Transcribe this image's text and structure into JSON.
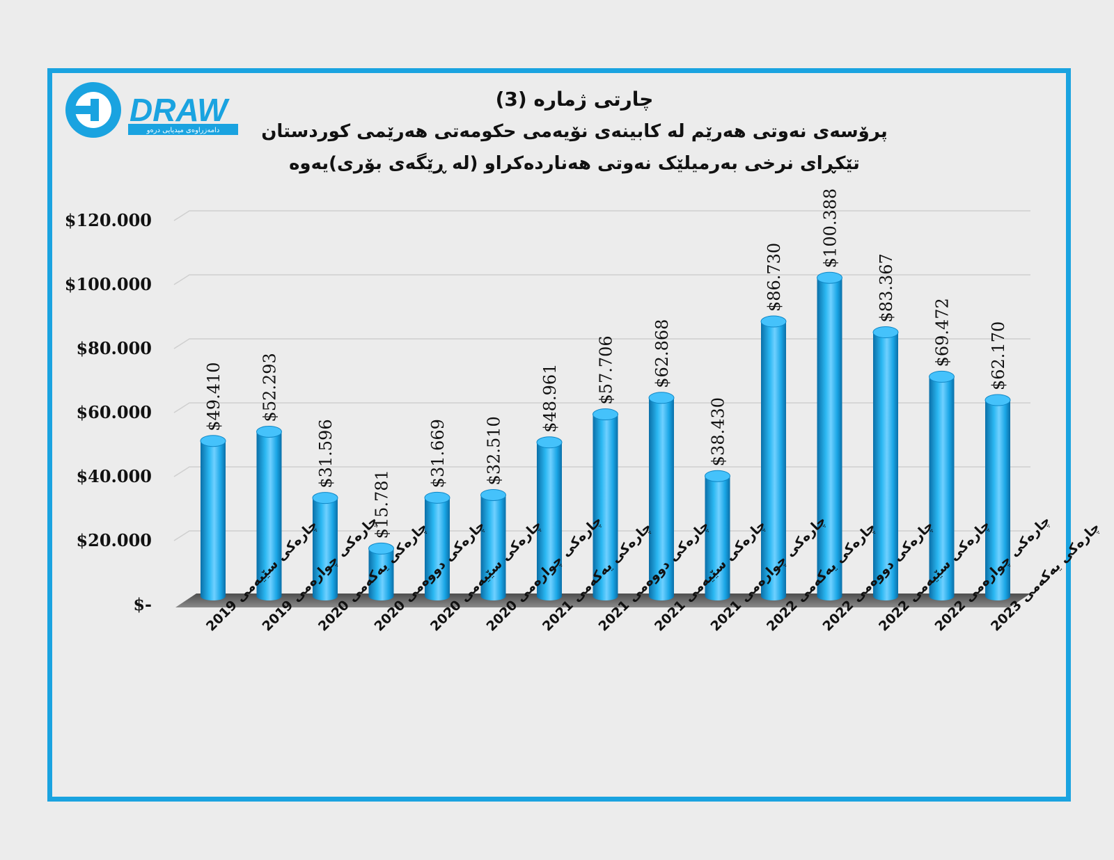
{
  "header": {
    "logo_text": "DRAW",
    "logo_tagline": "دامەزراوەی میدیایی درەو",
    "title_line1": "چارتی ژمارە (3)",
    "title_line2": "پرۆسەی نەوتی هەرێم لە کابینەی نۆیەمی حکومەتی هەرێمی کوردستان",
    "title_line3": "تێکڕای نرخی بەرمیلێک نەوتی هەناردەکراو (لە ڕێگەی بۆری)یەوە"
  },
  "colors": {
    "frame": "#1aa3e0",
    "bar": "#1aa6e6",
    "bar_dark": "#0a6fa8",
    "bar_light": "#6fd0ff",
    "floor": "#6b6b6b"
  },
  "chart_data": {
    "type": "bar",
    "categories": [
      "چارەکی سێیەمی 2019",
      "چارەکی چوارەمی 2019",
      "چارەکی یەکەمی 2020",
      "چارەکی دووەمی 2020",
      "چارەکی سێیەمی 2020",
      "چارەکی چوارەمی 2020",
      "چارەکی یەکەمی 2021",
      "چارەکی دووەمی 2021",
      "چارەکی سێیەمی 2021",
      "چارەکی چوارەمی 2021",
      "چارەکی یەکەمی 2022",
      "چارەکی دووەمی 2022",
      "چارەکی سێیەمی 2022",
      "چارەکی چوارەمی 2022",
      "چارەکی یەکەمی 2023"
    ],
    "values": [
      49.41,
      52.293,
      31.596,
      15.781,
      31.669,
      32.51,
      48.961,
      57.706,
      62.868,
      38.43,
      86.73,
      100.388,
      83.367,
      69.472,
      62.17
    ],
    "data_labels": [
      "$49.410",
      "$52.293",
      "$31.596",
      "$15.781",
      "$31.669",
      "$32.510",
      "$48.961",
      "$57.706",
      "$62.868",
      "$38.430",
      "$86.730",
      "$100.388",
      "$83.367",
      "$69.472",
      "$62.170"
    ],
    "ylim": [
      0,
      120
    ],
    "yticks": [
      0,
      20,
      40,
      60,
      80,
      100,
      120
    ],
    "ytick_labels": [
      "$-",
      "$20.000",
      "$40.000",
      "$60.000",
      "$80.000",
      "$100.000",
      "$120.000"
    ],
    "grid": true,
    "legend": "none"
  }
}
